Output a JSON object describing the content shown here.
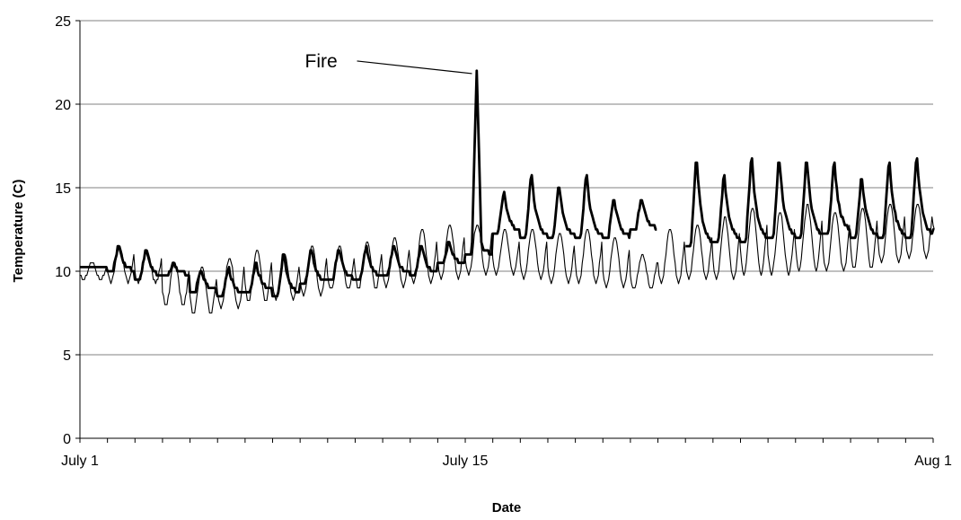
{
  "chart_data": {
    "type": "line",
    "title": "",
    "xlabel": "Date",
    "ylabel": "Temperature (C)",
    "x_type": "date",
    "xlim": [
      "07-01",
      "08-01"
    ],
    "ylim": [
      0,
      25
    ],
    "y_ticks": [
      0,
      5,
      10,
      15,
      20,
      25
    ],
    "x_tick_labels": [
      {
        "date": "07-01",
        "label": "July 1"
      },
      {
        "date": "07-15",
        "label": "July 15"
      },
      {
        "date": "08-01",
        "label": "Aug 1"
      }
    ],
    "minor_ticks": "daily",
    "grid": "horizontal",
    "legend": "none",
    "series": [
      {
        "style": "thick",
        "color": "#000000",
        "daily": [
          [
            "07-01",
            10.2,
            10.2
          ],
          [
            "07-02",
            10.0,
            11.6
          ],
          [
            "07-03",
            9.6,
            11.5
          ],
          [
            "07-04",
            9.8,
            10.5
          ],
          [
            "07-05",
            8.8,
            10.2
          ],
          [
            "07-06",
            8.6,
            10.3
          ],
          [
            "07-07",
            8.8,
            10.6
          ],
          [
            "07-08",
            8.6,
            11.2
          ],
          [
            "07-09",
            9.3,
            11.5
          ],
          [
            "07-10",
            9.5,
            11.5
          ],
          [
            "07-11",
            9.6,
            11.6
          ],
          [
            "07-12",
            9.8,
            11.7
          ],
          [
            "07-13",
            9.8,
            11.7
          ],
          [
            "07-14",
            10.4,
            11.8
          ],
          [
            "07-15",
            11.0,
            12.5
          ],
          [
            "07-16",
            12.3,
            14.9
          ],
          [
            "07-17",
            12.0,
            16.0
          ],
          [
            "07-18",
            12.0,
            15.3
          ],
          [
            "07-19",
            12.0,
            16.0
          ],
          [
            "07-20",
            12.0,
            14.5
          ],
          [
            "07-21",
            12.5,
            14.5
          ],
          [
            "07-23",
            11.5,
            17.1
          ],
          [
            "07-24",
            11.8,
            16.0
          ],
          [
            "07-25",
            11.8,
            17.1
          ],
          [
            "07-26",
            12.0,
            17.0
          ],
          [
            "07-27",
            12.0,
            17.0
          ],
          [
            "07-28",
            12.3,
            16.8
          ],
          [
            "07-29",
            12.0,
            15.9
          ],
          [
            "07-30",
            12.0,
            16.8
          ],
          [
            "07-31",
            12.0,
            17.2
          ],
          [
            "08-01",
            12.5,
            17.5
          ]
        ],
        "spike": {
          "x": "07-15 10:00",
          "y": 22.1
        }
      },
      {
        "style": "thin",
        "color": "#000000",
        "daily": [
          [
            "07-01",
            9.5,
            10.5
          ],
          [
            "07-02",
            9.3,
            11.5
          ],
          [
            "07-03",
            9.3,
            11.2
          ],
          [
            "07-04",
            8.0,
            10.5
          ],
          [
            "07-05",
            7.5,
            10.3
          ],
          [
            "07-06",
            7.8,
            10.9
          ],
          [
            "07-07",
            8.2,
            11.4
          ],
          [
            "07-08",
            8.3,
            11.0
          ],
          [
            "07-09",
            8.5,
            11.5
          ],
          [
            "07-10",
            8.9,
            11.5
          ],
          [
            "07-11",
            9.0,
            11.8
          ],
          [
            "07-12",
            9.0,
            12.0
          ],
          [
            "07-13",
            9.3,
            12.5
          ],
          [
            "07-14",
            9.5,
            12.9
          ],
          [
            "07-15",
            9.8,
            12.9
          ],
          [
            "07-16",
            9.8,
            12.5
          ],
          [
            "07-17",
            9.5,
            12.5
          ],
          [
            "07-18",
            9.3,
            12.3
          ],
          [
            "07-19",
            9.3,
            12.5
          ],
          [
            "07-20",
            9.0,
            12.0
          ],
          [
            "07-21",
            9.0,
            11.0
          ],
          [
            "07-22",
            9.3,
            12.5
          ],
          [
            "07-23",
            9.5,
            12.8
          ],
          [
            "07-24",
            9.5,
            13.2
          ],
          [
            "07-25",
            9.8,
            13.8
          ],
          [
            "07-26",
            9.8,
            13.5
          ],
          [
            "07-27",
            10.0,
            14.0
          ],
          [
            "07-28",
            10.0,
            13.5
          ],
          [
            "07-29",
            10.2,
            13.8
          ],
          [
            "07-30",
            10.5,
            14.1
          ],
          [
            "07-31",
            10.8,
            14.1
          ],
          [
            "08-01",
            12.2,
            14.0
          ]
        ]
      }
    ],
    "annotations": [
      {
        "text": "Fire",
        "x": "07-15 09:00",
        "y": 22.1
      }
    ]
  }
}
